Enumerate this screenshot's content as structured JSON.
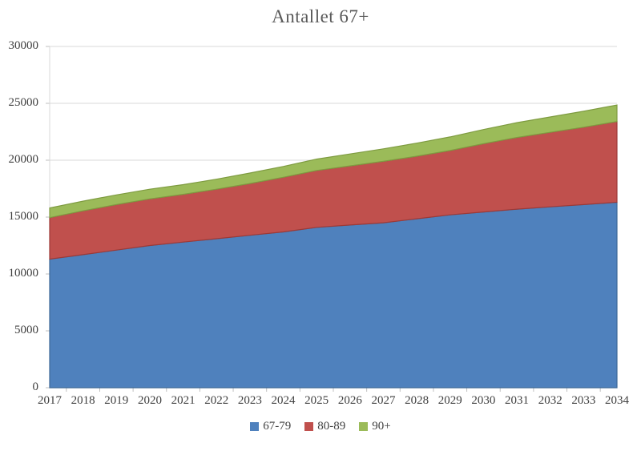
{
  "chart_data": {
    "type": "area",
    "stacked": true,
    "title": "Antallet 67+",
    "xlabel": "",
    "ylabel": "",
    "ylim": [
      0,
      30000
    ],
    "y_ticks": [
      0,
      5000,
      10000,
      15000,
      20000,
      25000,
      30000
    ],
    "grid": true,
    "legend_position": "bottom",
    "categories": [
      "2017",
      "2018",
      "2019",
      "2020",
      "2021",
      "2022",
      "2023",
      "2024",
      "2025",
      "2026",
      "2027",
      "2028",
      "2029",
      "2030",
      "2031",
      "2032",
      "2033",
      "2034"
    ],
    "series": [
      {
        "name": "67-79",
        "color": "#4F81BD",
        "border_color": "#3D6997",
        "values": [
          11300,
          11700,
          12100,
          12500,
          12800,
          13100,
          13400,
          13700,
          14100,
          14300,
          14500,
          14850,
          15200,
          15450,
          15700,
          15900,
          16100,
          16300
        ]
      },
      {
        "name": "80-89",
        "color": "#C0504D",
        "border_color": "#9C3A38",
        "values": [
          3650,
          3850,
          4000,
          4100,
          4200,
          4350,
          4550,
          4800,
          5000,
          5200,
          5400,
          5500,
          5650,
          6000,
          6300,
          6550,
          6800,
          7100
        ]
      },
      {
        "name": "90+",
        "color": "#9BBB59",
        "border_color": "#7E9B40",
        "values": [
          850,
          850,
          850,
          850,
          850,
          880,
          920,
          950,
          1000,
          1050,
          1100,
          1150,
          1200,
          1250,
          1300,
          1350,
          1400,
          1450
        ]
      }
    ],
    "gridline_color": "#D9D9D9",
    "tick_color": "#BFBFBF",
    "axis_text_color": "#404040",
    "title_color": "#595959"
  }
}
